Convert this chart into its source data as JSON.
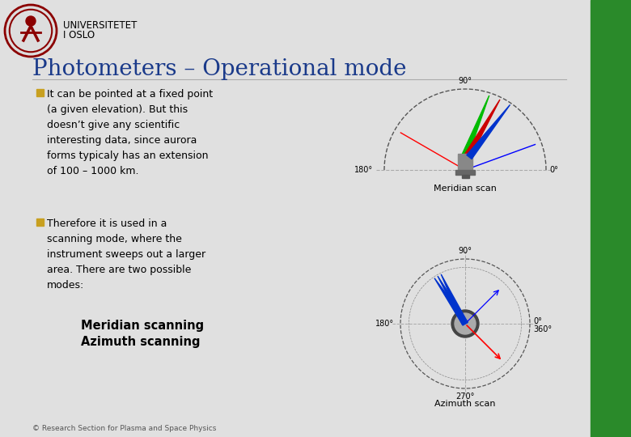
{
  "title": "Photometers – Operational mode",
  "title_color": "#1a3a8a",
  "bg_color": "#e8e8e8",
  "header_text1": "UNIVERSITETET",
  "header_text2": "I OSLO",
  "bullet1": "It can be pointed at a fixed point\n(a given elevation). But this\ndoesn’t give any scientific\ninteresting data, since aurora\nforms typicaly has an extension\nof 100 – 1000 km.",
  "bullet2": "Therefore it is used in a\nscanning mode, where the\ninstrument sweeps out a larger\narea. There are two possible\nmodes:",
  "item1": "Meridian scanning",
  "item2": "Azimuth scanning",
  "footer": "© Research Section for Plasma and Space Physics",
  "bullet_color": "#c8a020",
  "text_color": "#000000",
  "slide_bg": "#e8e8e8",
  "right_bar_color": "#2a8a2a"
}
